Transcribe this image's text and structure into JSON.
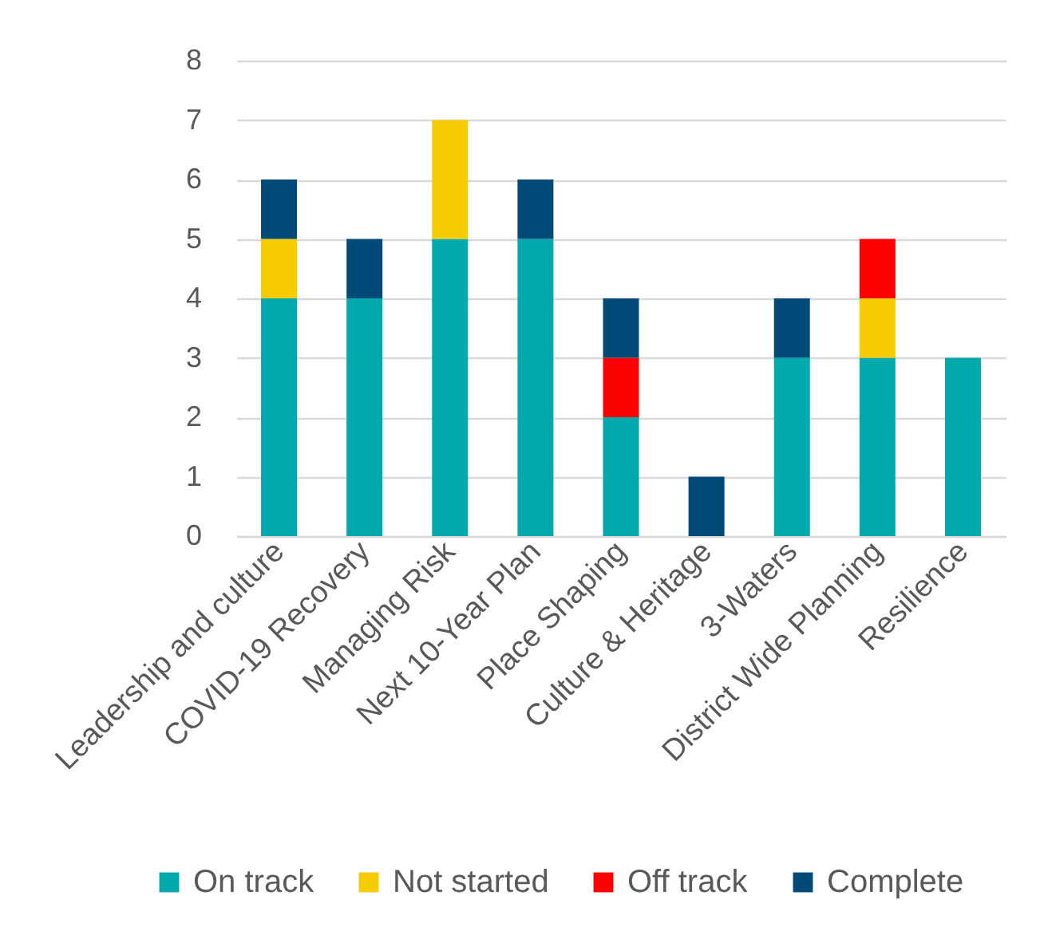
{
  "chart_data": {
    "type": "bar",
    "stacked": true,
    "categories": [
      "Leadership and culture",
      "COVID-19 Recovery",
      "Managing Risk",
      "Next 10-Year Plan",
      "Place Shaping",
      "Culture & Heritage",
      "3-Waters",
      "District Wide Planning",
      "Resilience"
    ],
    "series": [
      {
        "name": "On track",
        "color": "#00a9ac",
        "values": [
          4,
          4,
          5,
          5,
          2,
          null,
          3,
          3,
          3
        ]
      },
      {
        "name": "Not started",
        "color": "#f5cc00",
        "values": [
          1,
          null,
          2,
          null,
          null,
          null,
          null,
          1,
          null
        ]
      },
      {
        "name": "Off track",
        "color": "#ff0000",
        "values": [
          null,
          null,
          null,
          null,
          1,
          null,
          null,
          1,
          null
        ]
      },
      {
        "name": "Complete",
        "color": "#004a78",
        "values": [
          1,
          1,
          null,
          1,
          1,
          1,
          1,
          null,
          null
        ]
      }
    ],
    "ylim": [
      0,
      8
    ],
    "yticks": [
      0,
      1,
      2,
      3,
      4,
      5,
      6,
      7,
      8
    ],
    "grid": "y",
    "legend": "bottom"
  }
}
